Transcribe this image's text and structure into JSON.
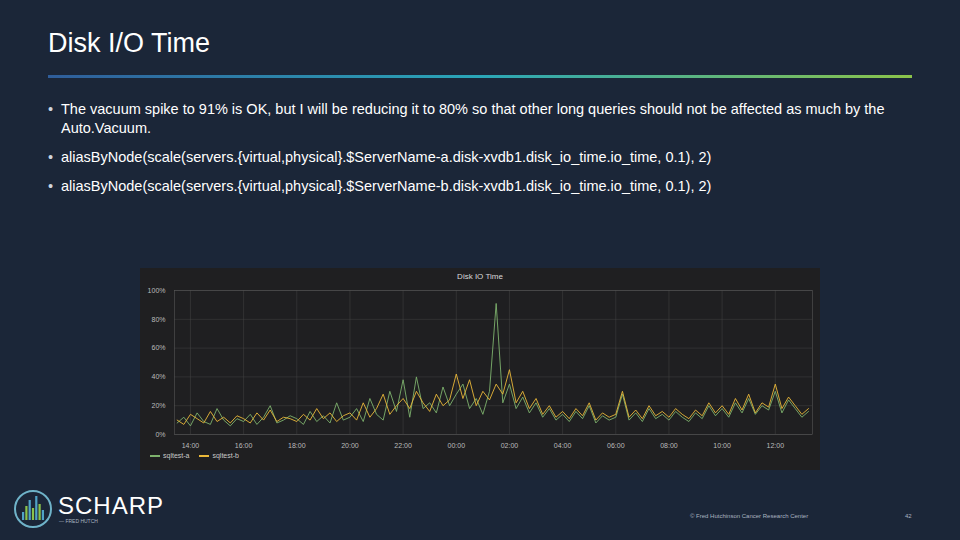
{
  "slide": {
    "title": "Disk I/O Time",
    "bullets": [
      "The vacuum spike to 91% is OK, but I will be reducing it to 80% so that other long queries should not be affected as much by the Auto.Vacuum.",
      "aliasByNode(scale(servers.{virtual,physical}.$ServerName-a.disk-xvdb1.disk_io_time.io_time, 0.1), 2)",
      "aliasByNode(scale(servers.{virtual,physical}.$ServerName-b.disk-xvdb1.disk_io_time.io_time, 0.1), 2)"
    ],
    "logo": "SCHARP",
    "logo_subtitle": "— FRED HUTCH",
    "footer": "© Fred Hutchinson Cancer Research Center",
    "page_number": "42"
  },
  "chart_data": {
    "type": "line",
    "title": "Disk IO Time",
    "legend": "bottom-left",
    "grid": true,
    "x": [
      13.5,
      13.75,
      14,
      14.25,
      14.5,
      14.75,
      15,
      15.25,
      15.5,
      15.75,
      16,
      16.25,
      16.5,
      16.75,
      17,
      17.25,
      17.5,
      17.75,
      18,
      18.25,
      18.5,
      18.75,
      19,
      19.25,
      19.5,
      19.75,
      20,
      20.25,
      20.5,
      20.75,
      21,
      21.25,
      21.5,
      21.75,
      22,
      22.25,
      22.5,
      22.75,
      23,
      23.25,
      23.5,
      23.75,
      24,
      24.25,
      24.5,
      24.75,
      25,
      25.25,
      25.5,
      25.75,
      26,
      26.25,
      26.5,
      26.75,
      27,
      27.25,
      27.5,
      27.75,
      28,
      28.25,
      28.5,
      28.75,
      29,
      29.25,
      29.5,
      29.75,
      30,
      30.25,
      30.5,
      30.75,
      31,
      31.25,
      31.5,
      31.75,
      32,
      32.25,
      32.5,
      32.75,
      33,
      33.25,
      33.5,
      33.75,
      34,
      34.25,
      34.5,
      34.75,
      35,
      35.25,
      35.5,
      35.75,
      36,
      36.25,
      36.5,
      36.75,
      37,
      37.25
    ],
    "series": [
      {
        "name": "sqltest-a",
        "color": "#7eb26d",
        "values": [
          8,
          12,
          6,
          15,
          9,
          7,
          18,
          10,
          6,
          11,
          9,
          14,
          7,
          12,
          20,
          8,
          10,
          13,
          11,
          7,
          16,
          9,
          13,
          8,
          22,
          10,
          12,
          18,
          9,
          25,
          14,
          10,
          30,
          16,
          38,
          12,
          40,
          18,
          22,
          15,
          33,
          20,
          28,
          35,
          18,
          25,
          14,
          30,
          91,
          22,
          35,
          18,
          26,
          15,
          22,
          12,
          18,
          10,
          14,
          9,
          16,
          11,
          20,
          8,
          13,
          10,
          12,
          28,
          10,
          15,
          9,
          18,
          11,
          14,
          10,
          16,
          12,
          9,
          15,
          11,
          20,
          13,
          18,
          12,
          22,
          15,
          25,
          14,
          20,
          17,
          30,
          15,
          24,
          18,
          12,
          16
        ]
      },
      {
        "name": "sqltest-b",
        "color": "#eab839",
        "values": [
          10,
          7,
          14,
          11,
          8,
          16,
          9,
          12,
          8,
          13,
          11,
          8,
          15,
          10,
          17,
          9,
          12,
          11,
          9,
          14,
          10,
          18,
          11,
          15,
          9,
          13,
          15,
          10,
          22,
          12,
          18,
          28,
          14,
          20,
          25,
          18,
          30,
          22,
          16,
          28,
          20,
          24,
          42,
          25,
          38,
          20,
          30,
          24,
          35,
          28,
          45,
          22,
          30,
          18,
          25,
          14,
          20,
          12,
          16,
          11,
          18,
          13,
          22,
          10,
          15,
          12,
          14,
          30,
          12,
          17,
          11,
          20,
          13,
          16,
          12,
          18,
          14,
          11,
          17,
          13,
          22,
          15,
          20,
          14,
          25,
          17,
          28,
          15,
          22,
          19,
          35,
          18,
          26,
          20,
          14,
          18
        ]
      }
    ],
    "xlim": [
      13.4,
      37.4
    ],
    "xticks": [
      {
        "value": 14,
        "label": "14:00"
      },
      {
        "value": 16,
        "label": "16:00"
      },
      {
        "value": 18,
        "label": "18:00"
      },
      {
        "value": 20,
        "label": "20:00"
      },
      {
        "value": 22,
        "label": "22:00"
      },
      {
        "value": 24,
        "label": "00:00"
      },
      {
        "value": 26,
        "label": "02:00"
      },
      {
        "value": 28,
        "label": "04:00"
      },
      {
        "value": 30,
        "label": "06:00"
      },
      {
        "value": 32,
        "label": "08:00"
      },
      {
        "value": 34,
        "label": "10:00"
      },
      {
        "value": 36,
        "label": "12:00"
      }
    ],
    "ylim": [
      0,
      100
    ],
    "yticks": [
      {
        "value": 0,
        "label": "0%"
      },
      {
        "value": 20,
        "label": "20%"
      },
      {
        "value": 40,
        "label": "40%"
      },
      {
        "value": 60,
        "label": "60%"
      },
      {
        "value": 80,
        "label": "80%"
      },
      {
        "value": 100,
        "label": "100%"
      }
    ]
  }
}
